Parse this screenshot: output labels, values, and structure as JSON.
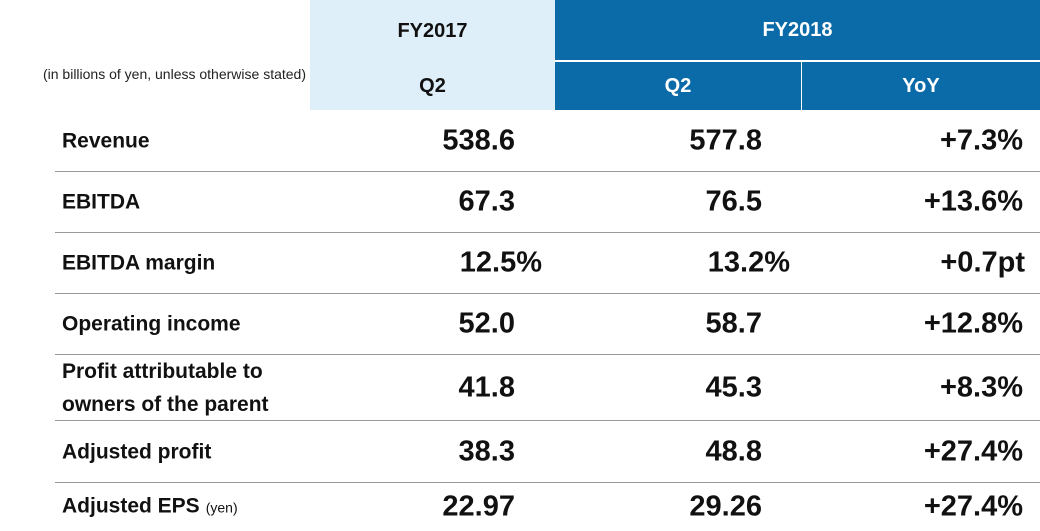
{
  "header": {
    "note": "(in billions of yen, unless otherwise stated)",
    "fy2017": "FY2017",
    "fy2018": "FY2018",
    "fy2017_q": "Q2",
    "fy2018_q": "Q2",
    "yoy": "YoY"
  },
  "table": {
    "rows": [
      {
        "label": "Revenue",
        "fy2017_q2": "538.6",
        "fy2018_q2": "577.8",
        "yoy": "+7.3%"
      },
      {
        "label": "EBITDA",
        "fy2017_q2": "67.3",
        "fy2018_q2": "76.5",
        "yoy": "+13.6%"
      },
      {
        "label": "EBITDA margin",
        "fy2017_q2": "12.5%",
        "fy2018_q2": "13.2%",
        "yoy": "+0.7pt"
      },
      {
        "label": "Operating income",
        "fy2017_q2": "52.0",
        "fy2018_q2": "58.7",
        "yoy": "+12.8%"
      },
      {
        "label": "Profit attributable to owners of the parent",
        "fy2017_q2": "41.8",
        "fy2018_q2": "45.3",
        "yoy": "+8.3%"
      },
      {
        "label": "Adjusted profit",
        "fy2017_q2": "38.3",
        "fy2018_q2": "48.8",
        "yoy": "+27.4%"
      },
      {
        "label": "Adjusted EPS",
        "unit": "(yen)",
        "fy2017_q2": "22.97",
        "fy2018_q2": "29.26",
        "yoy": "+27.4%"
      }
    ]
  }
}
